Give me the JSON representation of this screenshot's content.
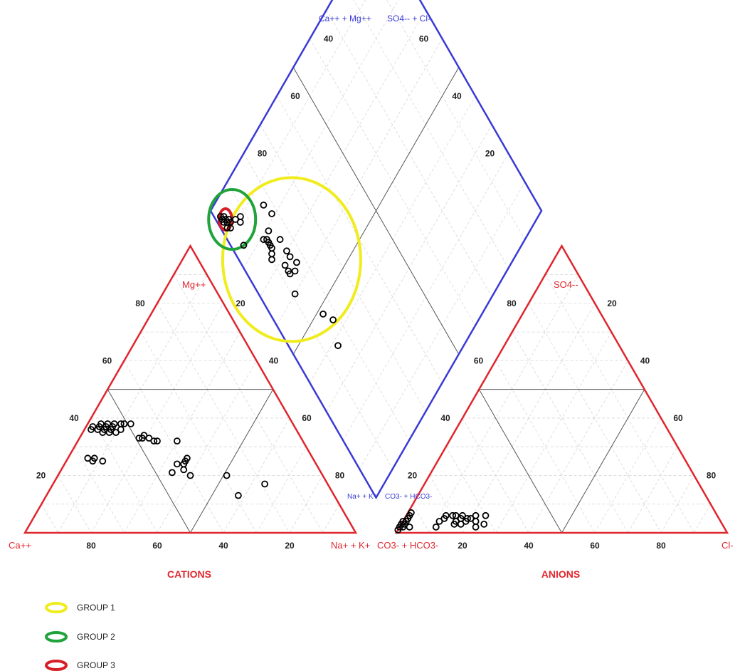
{
  "chart_data": {
    "type": "scatter",
    "subtype": "piper-trilinear",
    "grid": true,
    "panels": {
      "cations": {
        "title": "CATIONS",
        "vertex_labels": {
          "left": "Ca++",
          "top": "Mg++",
          "right": "Na+ + K+"
        },
        "ticks": [
          "20",
          "40",
          "60",
          "80"
        ]
      },
      "anions": {
        "title": "ANIONS",
        "vertex_labels": {
          "left": "CO3- + HCO3-",
          "top": "SO4--",
          "right": "Cl-"
        },
        "ticks": [
          "20",
          "40",
          "60",
          "80"
        ]
      },
      "diamond": {
        "corner_labels": {
          "top_left": "Ca++ + Mg++",
          "top_right": "SO4-- + Cl-",
          "bottom_left": "Na+ + K+",
          "bottom_right": "CO3- + HCO3-"
        },
        "ticks": [
          "20",
          "40",
          "60",
          "80"
        ]
      }
    },
    "cation_points": [
      {
        "ca": 62,
        "mg": 36,
        "na": 2
      },
      {
        "ca": 61,
        "mg": 37,
        "na": 2
      },
      {
        "ca": 60,
        "mg": 36,
        "na": 4
      },
      {
        "ca": 59,
        "mg": 37,
        "na": 4
      },
      {
        "ca": 59,
        "mg": 35,
        "na": 6
      },
      {
        "ca": 58,
        "mg": 38,
        "na": 4
      },
      {
        "ca": 58,
        "mg": 36,
        "na": 6
      },
      {
        "ca": 57,
        "mg": 37,
        "na": 6
      },
      {
        "ca": 57,
        "mg": 35,
        "na": 8
      },
      {
        "ca": 56,
        "mg": 38,
        "na": 6
      },
      {
        "ca": 56,
        "mg": 36,
        "na": 8
      },
      {
        "ca": 55,
        "mg": 37,
        "na": 8
      },
      {
        "ca": 55,
        "mg": 35,
        "na": 10
      },
      {
        "ca": 54,
        "mg": 38,
        "na": 8
      },
      {
        "ca": 53,
        "mg": 36,
        "na": 11
      },
      {
        "ca": 52,
        "mg": 38,
        "na": 10
      },
      {
        "ca": 51,
        "mg": 38,
        "na": 11
      },
      {
        "ca": 49,
        "mg": 38,
        "na": 13
      },
      {
        "ca": 49,
        "mg": 33,
        "na": 18
      },
      {
        "ca": 48,
        "mg": 33,
        "na": 19
      },
      {
        "ca": 47,
        "mg": 34,
        "na": 19
      },
      {
        "ca": 46,
        "mg": 33,
        "na": 21
      },
      {
        "ca": 45,
        "mg": 32,
        "na": 23
      },
      {
        "ca": 44,
        "mg": 32,
        "na": 24
      },
      {
        "ca": 38,
        "mg": 32,
        "na": 30
      },
      {
        "ca": 68,
        "mg": 26,
        "na": 6
      },
      {
        "ca": 67,
        "mg": 25,
        "na": 8
      },
      {
        "ca": 66,
        "mg": 26,
        "na": 8
      },
      {
        "ca": 64,
        "mg": 25,
        "na": 11
      },
      {
        "ca": 45,
        "mg": 21,
        "na": 34
      },
      {
        "ca": 42,
        "mg": 24,
        "na": 34
      },
      {
        "ca": 41,
        "mg": 22,
        "na": 37
      },
      {
        "ca": 40,
        "mg": 24,
        "na": 36
      },
      {
        "ca": 39,
        "mg": 25,
        "na": 36
      },
      {
        "ca": 38,
        "mg": 26,
        "na": 36
      },
      {
        "ca": 40,
        "mg": 20,
        "na": 40
      },
      {
        "ca": 29,
        "mg": 20,
        "na": 51
      },
      {
        "ca": 29,
        "mg": 13,
        "na": 58
      },
      {
        "ca": 19,
        "mg": 17,
        "na": 64
      }
    ],
    "anion_points": [
      {
        "co3": 99,
        "so4": 1,
        "cl": 0
      },
      {
        "co3": 98,
        "so4": 2,
        "cl": 0
      },
      {
        "co3": 97,
        "so4": 3,
        "cl": 0
      },
      {
        "co3": 97,
        "so4": 2,
        "cl": 1
      },
      {
        "co3": 96,
        "so4": 3,
        "cl": 1
      },
      {
        "co3": 96,
        "so4": 4,
        "cl": 0
      },
      {
        "co3": 95,
        "so4": 4,
        "cl": 1
      },
      {
        "co3": 94,
        "so4": 5,
        "cl": 1
      },
      {
        "co3": 93,
        "so4": 6,
        "cl": 1
      },
      {
        "co3": 92,
        "so4": 7,
        "cl": 1
      },
      {
        "co3": 95,
        "so4": 2,
        "cl": 3
      },
      {
        "co3": 85,
        "so4": 4,
        "cl": 11
      },
      {
        "co3": 83,
        "so4": 5,
        "cl": 12
      },
      {
        "co3": 82,
        "so4": 6,
        "cl": 12
      },
      {
        "co3": 80,
        "so4": 6,
        "cl": 14
      },
      {
        "co3": 80,
        "so4": 4,
        "cl": 16
      },
      {
        "co3": 79,
        "so4": 6,
        "cl": 15
      },
      {
        "co3": 78,
        "so4": 5,
        "cl": 17
      },
      {
        "co3": 77,
        "so4": 6,
        "cl": 17
      },
      {
        "co3": 76,
        "so4": 5,
        "cl": 19
      },
      {
        "co3": 75,
        "so4": 5,
        "cl": 20
      },
      {
        "co3": 75,
        "so4": 2,
        "cl": 23
      },
      {
        "co3": 74,
        "so4": 4,
        "cl": 22
      },
      {
        "co3": 77,
        "so4": 4,
        "cl": 19
      },
      {
        "co3": 73,
        "so4": 6,
        "cl": 21
      },
      {
        "co3": 72,
        "so4": 3,
        "cl": 25
      },
      {
        "co3": 70,
        "so4": 6,
        "cl": 24
      },
      {
        "co3": 79,
        "so4": 3,
        "cl": 18
      },
      {
        "co3": 81,
        "so4": 3,
        "cl": 16
      },
      {
        "co3": 87,
        "so4": 2,
        "cl": 11
      }
    ],
    "diamond_points": [
      {
        "na": 4,
        "so4cl": 2
      },
      {
        "na": 5,
        "so4cl": 2
      },
      {
        "na": 5,
        "so4cl": 3
      },
      {
        "na": 6,
        "so4cl": 2
      },
      {
        "na": 6,
        "so4cl": 3
      },
      {
        "na": 7,
        "so4cl": 3
      },
      {
        "na": 7,
        "so4cl": 4
      },
      {
        "na": 8,
        "so4cl": 2
      },
      {
        "na": 8,
        "so4cl": 4
      },
      {
        "na": 9,
        "so4cl": 3
      },
      {
        "na": 9,
        "so4cl": 6
      },
      {
        "na": 11,
        "so4cl": 7
      },
      {
        "na": 10,
        "so4cl": 8
      },
      {
        "na": 16,
        "so4cl": 4
      },
      {
        "na": 15,
        "so4cl": 17
      },
      {
        "na": 19,
        "so4cl": 18
      },
      {
        "na": 21,
        "so4cl": 11
      },
      {
        "na": 21,
        "so4cl": 14
      },
      {
        "na": 22,
        "so4cl": 12
      },
      {
        "na": 23,
        "so4cl": 12
      },
      {
        "na": 24,
        "so4cl": 12
      },
      {
        "na": 25,
        "so4cl": 12
      },
      {
        "na": 26,
        "so4cl": 11
      },
      {
        "na": 27,
        "so4cl": 10
      },
      {
        "na": 26,
        "so4cl": 16
      },
      {
        "na": 30,
        "so4cl": 16
      },
      {
        "na": 32,
        "so4cl": 16
      },
      {
        "na": 32,
        "so4cl": 13
      },
      {
        "na": 34,
        "so4cl": 13
      },
      {
        "na": 35,
        "so4cl": 13
      },
      {
        "na": 35,
        "so4cl": 17
      },
      {
        "na": 36,
        "so4cl": 15
      },
      {
        "na": 40,
        "so4cl": 11
      },
      {
        "na": 52,
        "so4cl": 16
      },
      {
        "na": 56,
        "so4cl": 18
      },
      {
        "na": 62,
        "so4cl": 15
      }
    ],
    "group_ellipses": [
      {
        "name": "GROUP 1",
        "color": "#f1ec1e",
        "na": 33,
        "so4cl": 16,
        "rx": 97,
        "ry": 115
      },
      {
        "name": "GROUP 2",
        "color": "#1fa33a",
        "na": 8,
        "so4cl": 5,
        "rx": 33,
        "ry": 42
      },
      {
        "name": "GROUP 3",
        "color": "#d61f26",
        "na": 6,
        "so4cl": 3,
        "rx": 9,
        "ry": 15
      }
    ],
    "legend": {
      "placement": "bottom-left",
      "items": [
        {
          "label": "GROUP 1",
          "color": "#f1ec1e"
        },
        {
          "label": "GROUP 2",
          "color": "#1fa33a"
        },
        {
          "label": "GROUP 3",
          "color": "#d61f26"
        }
      ]
    },
    "colors": {
      "triangle": "#e0262e",
      "diamond": "#3a3ad6",
      "inner_lines": "#555555",
      "grid": "#d8d8d8",
      "points": "#000000"
    }
  }
}
